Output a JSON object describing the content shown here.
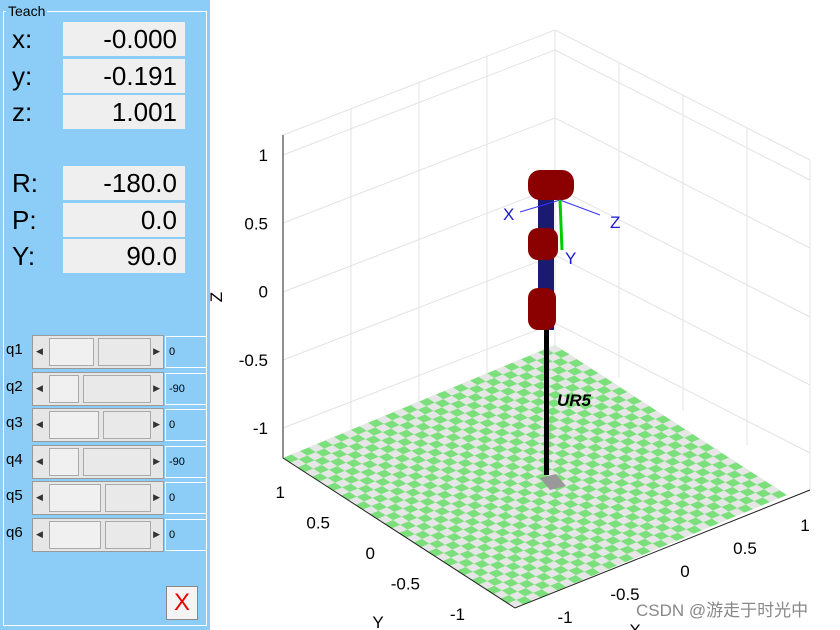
{
  "panel": {
    "title": "Teach",
    "pose": [
      {
        "label": "x:",
        "value": "-0.000"
      },
      {
        "label": "y:",
        "value": "-0.191"
      },
      {
        "label": "z:",
        "value": "1.001"
      }
    ],
    "orientation": [
      {
        "label": "R:",
        "value": "-180.0"
      },
      {
        "label": "P:",
        "value": "0.0"
      },
      {
        "label": "Y:",
        "value": "90.0"
      }
    ],
    "joints": [
      {
        "label": "q1",
        "value": "0"
      },
      {
        "label": "q2",
        "value": "-90"
      },
      {
        "label": "q3",
        "value": "0"
      },
      {
        "label": "q4",
        "value": "-90"
      },
      {
        "label": "q5",
        "value": "0"
      },
      {
        "label": "q6",
        "value": "0"
      }
    ],
    "close": "X"
  },
  "plot": {
    "z_axis": {
      "label": "Z",
      "ticks": [
        "1",
        "0.5",
        "0",
        "-0.5",
        "-1"
      ]
    },
    "y_axis": {
      "label": "Y",
      "ticks": [
        "1",
        "0.5",
        "0",
        "-0.5",
        "-1"
      ]
    },
    "x_axis": {
      "label": "X",
      "ticks": [
        "1",
        "0.5",
        "0",
        "-0.5",
        "-1"
      ]
    },
    "robot_name": "UR5",
    "frame_labels": [
      "X",
      "Y",
      "Z"
    ]
  },
  "watermark": "CSDN @游走于时光中"
}
